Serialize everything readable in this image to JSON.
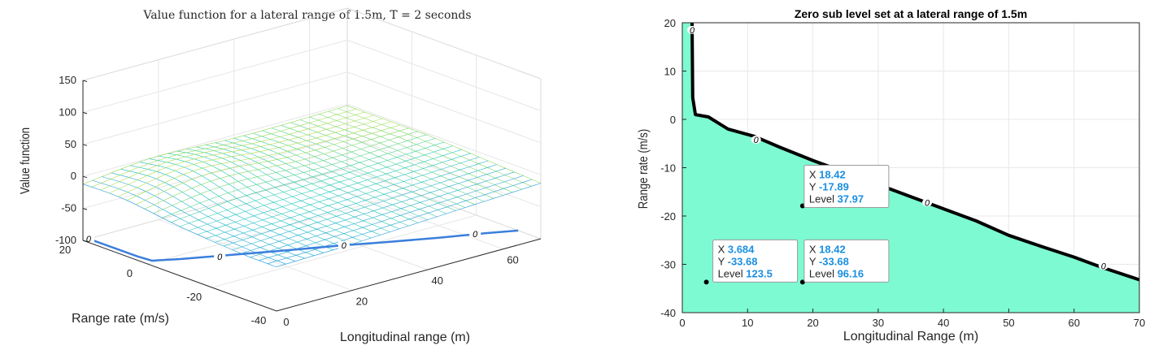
{
  "chart_data": [
    {
      "type": "surface3d",
      "title": "Value function for a lateral range of 1.5m, T = 2 seconds",
      "xlabel": "Longitudinal range (m)",
      "ylabel": "Range rate (m/s)",
      "zlabel": "Value function",
      "x_ticks": [
        "0",
        "20",
        "40",
        "60"
      ],
      "y_ticks": [
        "20",
        "0",
        "-20",
        "-40"
      ],
      "z_ticks": [
        "150",
        "100",
        "50",
        "0",
        "-50",
        "-100"
      ],
      "xlim": [
        0,
        70
      ],
      "ylim": [
        -40,
        20
      ],
      "zlim": [
        -100,
        150
      ],
      "contour_projection": {
        "level": 0,
        "label": "0",
        "points": [
          [
            1.5,
            20
          ],
          [
            1.6,
            5
          ],
          [
            2,
            1
          ],
          [
            7,
            -2
          ],
          [
            15,
            -6
          ],
          [
            25,
            -11
          ],
          [
            37.5,
            -17
          ],
          [
            45,
            -21
          ],
          [
            55,
            -26
          ],
          [
            64,
            -30
          ],
          [
            70,
            -33
          ]
        ]
      }
    },
    {
      "type": "contour",
      "title": "Zero sub level set at a lateral range of 1.5m",
      "xlabel": "Longitudinal Range (m)",
      "ylabel": "Range rate (m/s)",
      "xlim": [
        0,
        70
      ],
      "ylim": [
        -40,
        20
      ],
      "x_ticks": [
        0,
        10,
        20,
        30,
        40,
        50,
        60,
        70
      ],
      "y_ticks": [
        20,
        10,
        0,
        -10,
        -20,
        -30,
        -40
      ],
      "grid": true,
      "fill_color": "#7dfad2",
      "line_color": "#000000",
      "contour_level": 0,
      "contour_label": "0",
      "contour": [
        [
          1.5,
          20
        ],
        [
          1.6,
          4.5
        ],
        [
          2,
          1
        ],
        [
          4,
          0.5
        ],
        [
          7,
          -2
        ],
        [
          11,
          -3.5
        ],
        [
          15,
          -5.8
        ],
        [
          20,
          -8.5
        ],
        [
          25,
          -11
        ],
        [
          30,
          -13.5
        ],
        [
          35,
          -16
        ],
        [
          40,
          -18.5
        ],
        [
          45,
          -21
        ],
        [
          50,
          -24
        ],
        [
          55,
          -26.3
        ],
        [
          60,
          -28.5
        ],
        [
          64,
          -30.5
        ],
        [
          70,
          -33.2
        ]
      ],
      "contour_label_at": [
        [
          1.5,
          18.5
        ],
        [
          11.3,
          -4.2
        ],
        [
          37.5,
          -17.2
        ],
        [
          64.5,
          -30.3
        ]
      ],
      "datatips": [
        {
          "x_label": "X",
          "x": "18.42",
          "y_label": "Y",
          "y": "-17.89",
          "level_label": "Level",
          "level": "37.97",
          "px": 18.42,
          "py": -17.89
        },
        {
          "x_label": "X",
          "x": "3.684",
          "y_label": "Y",
          "y": "-33.68",
          "level_label": "Level",
          "level": "123.5",
          "px": 3.684,
          "py": -33.68
        },
        {
          "x_label": "X",
          "x": "18.42",
          "y_label": "Y",
          "y": "-33.68",
          "level_label": "Level",
          "level": "96.16",
          "px": 18.42,
          "py": -33.68
        }
      ]
    }
  ]
}
